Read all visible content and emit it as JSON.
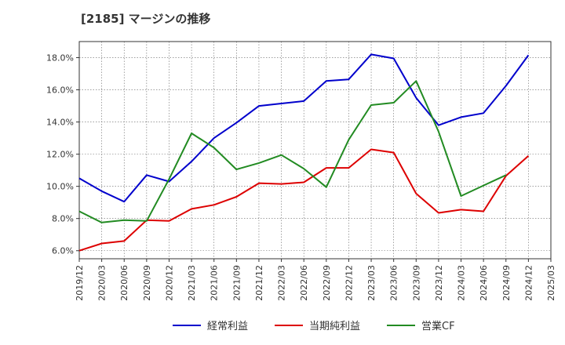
{
  "title": "[2185]  マージンの推移",
  "chart_data": {
    "type": "line",
    "title": "[2185]  マージンの推移",
    "xlabel": "",
    "ylabel": "",
    "x": [
      "2019/12",
      "2020/03",
      "2020/06",
      "2020/09",
      "2020/12",
      "2021/03",
      "2021/06",
      "2021/09",
      "2021/12",
      "2022/03",
      "2022/06",
      "2022/09",
      "2022/12",
      "2023/03",
      "2023/06",
      "2023/09",
      "2023/12",
      "2024/03",
      "2024/06",
      "2024/09",
      "2024/12",
      "2025/03"
    ],
    "ylim": [
      5.5,
      19.0
    ],
    "yticks": [
      6.0,
      8.0,
      10.0,
      12.0,
      14.0,
      16.0,
      18.0
    ],
    "ytick_labels": [
      "6.0%",
      "8.0%",
      "10.0%",
      "12.0%",
      "14.0%",
      "16.0%",
      "18.0%"
    ],
    "grid": true,
    "legend_position": "bottom",
    "series": [
      {
        "name": "経常利益",
        "color": "#0000cc",
        "values": [
          10.5,
          9.7,
          9.05,
          10.7,
          10.3,
          11.55,
          13.0,
          13.95,
          15.0,
          15.15,
          15.3,
          16.55,
          16.65,
          18.2,
          17.95,
          15.5,
          13.8,
          14.3,
          14.55,
          16.25,
          18.15,
          null
        ]
      },
      {
        "name": "当期純利益",
        "color": "#dd0000",
        "values": [
          6.0,
          6.45,
          6.6,
          7.9,
          7.85,
          8.6,
          8.85,
          9.35,
          10.2,
          10.15,
          10.25,
          11.15,
          11.15,
          12.3,
          12.1,
          9.55,
          8.35,
          8.55,
          8.45,
          10.65,
          11.9,
          null
        ]
      },
      {
        "name": "営業CF",
        "color": "#228b22",
        "values": [
          8.45,
          7.75,
          7.9,
          7.85,
          10.45,
          13.3,
          12.4,
          11.05,
          11.45,
          11.95,
          11.1,
          9.95,
          12.9,
          15.05,
          15.2,
          16.55,
          13.4,
          9.4,
          10.05,
          10.7,
          null,
          null
        ]
      }
    ]
  }
}
